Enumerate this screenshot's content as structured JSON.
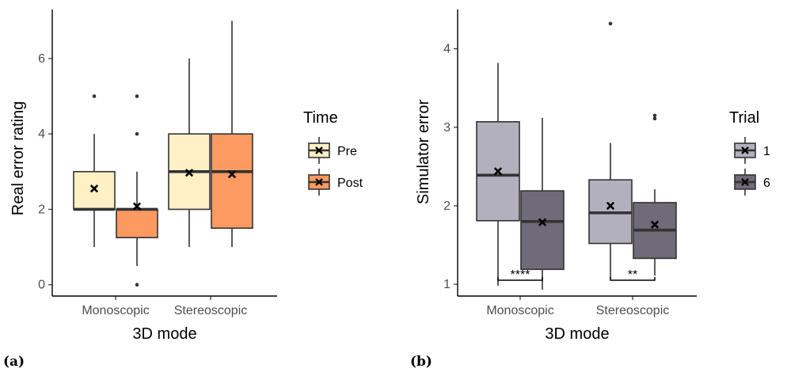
{
  "chart_data": [
    {
      "type": "box",
      "panel": "(a)",
      "xlabel": "3D mode",
      "ylabel": "Real error rating",
      "ylim": [
        -0.3,
        7.3
      ],
      "yticks": [
        0,
        2,
        4,
        6
      ],
      "categories": [
        "Monoscopic",
        "Stereoscopic"
      ],
      "legend": {
        "title": "Time",
        "position": "right"
      },
      "series": [
        {
          "name": "Pre",
          "color": "#fff0c6",
          "boxes": [
            {
              "category": "Monoscopic",
              "min": 1,
              "q1": 2,
              "median": 2,
              "q3": 3,
              "max": 4,
              "mean": 2.55,
              "outliers": [
                5
              ]
            },
            {
              "category": "Stereoscopic",
              "min": 1,
              "q1": 2,
              "median": 3,
              "q3": 4,
              "max": 6,
              "mean": 2.97,
              "outliers": []
            }
          ]
        },
        {
          "name": "Post",
          "color": "#fc9a62",
          "boxes": [
            {
              "category": "Monoscopic",
              "min": 0.5,
              "q1": 1.25,
              "median": 2,
              "q3": 2,
              "max": 3,
              "mean": 2.08,
              "outliers": [
                0,
                4,
                5
              ]
            },
            {
              "category": "Stereoscopic",
              "min": 1,
              "q1": 1.5,
              "median": 3,
              "q3": 4,
              "max": 7,
              "mean": 2.93,
              "outliers": []
            }
          ]
        }
      ],
      "significance": []
    },
    {
      "type": "box",
      "panel": "(b)",
      "xlabel": "3D mode",
      "ylabel": "Simulator error",
      "ylim": [
        0.85,
        4.5
      ],
      "yticks": [
        1,
        2,
        3,
        4
      ],
      "categories": [
        "Monoscopic",
        "Stereoscopic"
      ],
      "legend": {
        "title": "Trial",
        "position": "right"
      },
      "series": [
        {
          "name": "1",
          "color": "#b3b0be",
          "boxes": [
            {
              "category": "Monoscopic",
              "min": 0.98,
              "q1": 1.81,
              "median": 2.39,
              "q3": 3.07,
              "max": 3.82,
              "mean": 2.44,
              "outliers": []
            },
            {
              "category": "Stereoscopic",
              "min": 1.07,
              "q1": 1.52,
              "median": 1.91,
              "q3": 2.33,
              "max": 2.8,
              "mean": 2.0,
              "outliers": [
                4.32
              ]
            }
          ]
        },
        {
          "name": "6",
          "color": "#6f6b78",
          "boxes": [
            {
              "category": "Monoscopic",
              "min": 0.93,
              "q1": 1.19,
              "median": 1.8,
              "q3": 2.19,
              "max": 3.12,
              "mean": 1.79,
              "outliers": []
            },
            {
              "category": "Stereoscopic",
              "min": 1.11,
              "q1": 1.33,
              "median": 1.69,
              "q3": 2.04,
              "max": 2.21,
              "mean": 1.76,
              "outliers": [
                3.11,
                3.15
              ]
            }
          ]
        }
      ],
      "significance": [
        {
          "category": "Monoscopic",
          "label": "****"
        },
        {
          "category": "Stereoscopic",
          "label": "**"
        }
      ]
    }
  ],
  "captions": [
    "(a)",
    "(b)"
  ]
}
